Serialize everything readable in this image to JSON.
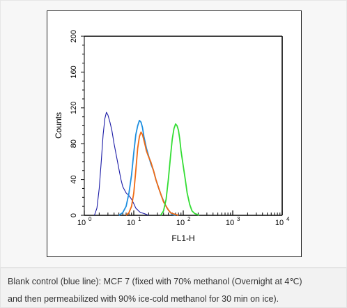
{
  "chart_data": {
    "type": "line",
    "xlabel": "FL1-H",
    "ylabel": "Counts",
    "xscale": "log",
    "xlim": [
      1,
      10000
    ],
    "ylim": [
      0,
      200
    ],
    "yticks": [
      "0",
      "40",
      "80",
      "120",
      "160",
      "200"
    ],
    "xticks": [
      {
        "base": "10",
        "exp": "0"
      },
      {
        "base": "10",
        "exp": "1"
      },
      {
        "base": "10",
        "exp": "2"
      },
      {
        "base": "10",
        "exp": "3"
      },
      {
        "base": "10",
        "exp": "4"
      }
    ],
    "series": [
      {
        "color": "#1a1aa6",
        "x": [
          1.6,
          1.8,
          2.0,
          2.2,
          2.4,
          2.6,
          2.8,
          3.0,
          3.3,
          3.6,
          4.0,
          4.5,
          5.0,
          5.5,
          6.0,
          7.0,
          8.0,
          9.0,
          10,
          11,
          12,
          13,
          14,
          16,
          18,
          20
        ],
        "values": [
          0,
          8,
          30,
          60,
          90,
          108,
          115,
          112,
          104,
          95,
          80,
          65,
          52,
          40,
          32,
          25,
          22,
          18,
          13,
          8,
          6,
          4,
          3,
          2,
          1,
          0
        ]
      },
      {
        "color": "#1e8fe0",
        "x": [
          5,
          6,
          7,
          8,
          9,
          10,
          11,
          12,
          13,
          14,
          15,
          16,
          18,
          20,
          22,
          25,
          28,
          32,
          36,
          40,
          45,
          50,
          55,
          60,
          70
        ],
        "values": [
          0,
          3,
          10,
          25,
          45,
          70,
          90,
          100,
          106,
          104,
          98,
          88,
          75,
          66,
          58,
          50,
          40,
          30,
          22,
          16,
          10,
          6,
          3,
          1,
          0
        ]
      },
      {
        "color": "#f06a14",
        "x": [
          7,
          8,
          9,
          10,
          11,
          12,
          13,
          14,
          15,
          16,
          17,
          18,
          20,
          22,
          25,
          28,
          32,
          36,
          40,
          45,
          50,
          55,
          60,
          70,
          80
        ],
        "values": [
          0,
          3,
          10,
          25,
          50,
          75,
          88,
          93,
          90,
          84,
          78,
          72,
          65,
          60,
          50,
          40,
          30,
          22,
          15,
          10,
          6,
          3,
          2,
          1,
          0
        ]
      },
      {
        "color": "#33dd33",
        "x": [
          35,
          40,
          45,
          50,
          55,
          60,
          65,
          70,
          75,
          80,
          85,
          90,
          100,
          110,
          120,
          135,
          150,
          170,
          190,
          210
        ],
        "values": [
          0,
          5,
          18,
          40,
          65,
          85,
          97,
          102,
          100,
          95,
          85,
          72,
          55,
          40,
          25,
          12,
          5,
          2,
          1,
          0
        ]
      }
    ]
  },
  "caption": {
    "line1": "Blank control (blue line): MCF 7 (fixed with 70% methanol (Overnight at 4℃)",
    "line2": "and then permeabilized with 90% ice-cold methanol for 30 min on ice)."
  }
}
